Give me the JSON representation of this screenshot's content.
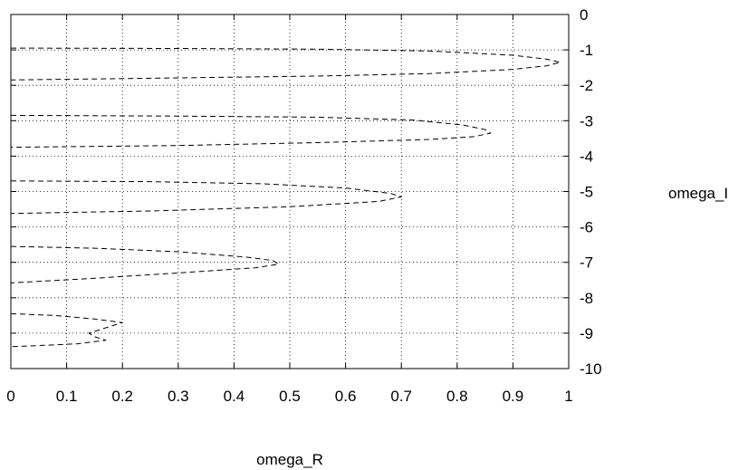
{
  "chart_data": {
    "type": "line",
    "title": "",
    "xlabel": "omega_R",
    "ylabel": "omega_I",
    "xlim": [
      0,
      1
    ],
    "ylim": [
      -10,
      0
    ],
    "x_ticks": [
      "0",
      "0.1",
      "0.2",
      "0.3",
      "0.4",
      "0.5",
      "0.6",
      "0.7",
      "0.8",
      "0.9",
      "1"
    ],
    "y_ticks": [
      "0",
      "-1",
      "-2",
      "-3",
      "-4",
      "-5",
      "-6",
      "-7",
      "-8",
      "-9",
      "-10"
    ],
    "grid": true,
    "line_style": "dashed",
    "line_color": "#000000",
    "series": [
      {
        "x": [
          0.0,
          0.3,
          0.55,
          0.75,
          0.9,
          0.96,
          0.985,
          0.96,
          0.9,
          0.75,
          0.55,
          0.3,
          0.0
        ],
        "y": [
          -0.95,
          -0.96,
          -0.98,
          -1.03,
          -1.15,
          -1.26,
          -1.35,
          -1.45,
          -1.55,
          -1.67,
          -1.74,
          -1.79,
          -1.85
        ]
      },
      {
        "x": [
          0.0,
          0.3,
          0.55,
          0.72,
          0.81,
          0.85,
          0.86,
          0.83,
          0.75,
          0.55,
          0.3,
          0.0
        ],
        "y": [
          -2.85,
          -2.87,
          -2.9,
          -2.98,
          -3.12,
          -3.25,
          -3.35,
          -3.45,
          -3.53,
          -3.62,
          -3.7,
          -3.75
        ]
      },
      {
        "x": [
          0.0,
          0.25,
          0.45,
          0.6,
          0.68,
          0.7,
          0.66,
          0.5,
          0.25,
          0.0
        ],
        "y": [
          -4.7,
          -4.72,
          -4.78,
          -4.9,
          -5.05,
          -5.15,
          -5.28,
          -5.43,
          -5.55,
          -5.62
        ]
      },
      {
        "x": [
          0.0,
          0.15,
          0.3,
          0.42,
          0.47,
          0.48,
          0.44,
          0.3,
          0.15,
          0.0
        ],
        "y": [
          -6.55,
          -6.6,
          -6.7,
          -6.85,
          -6.95,
          -7.05,
          -7.15,
          -7.3,
          -7.45,
          -7.58
        ]
      },
      {
        "x": [
          0.0,
          0.08,
          0.15,
          0.2,
          0.17,
          0.14,
          0.15,
          0.17,
          0.12,
          0.05,
          0.0
        ],
        "y": [
          -8.45,
          -8.5,
          -8.6,
          -8.7,
          -8.85,
          -9.0,
          -9.1,
          -9.2,
          -9.3,
          -9.35,
          -9.38
        ]
      }
    ]
  }
}
